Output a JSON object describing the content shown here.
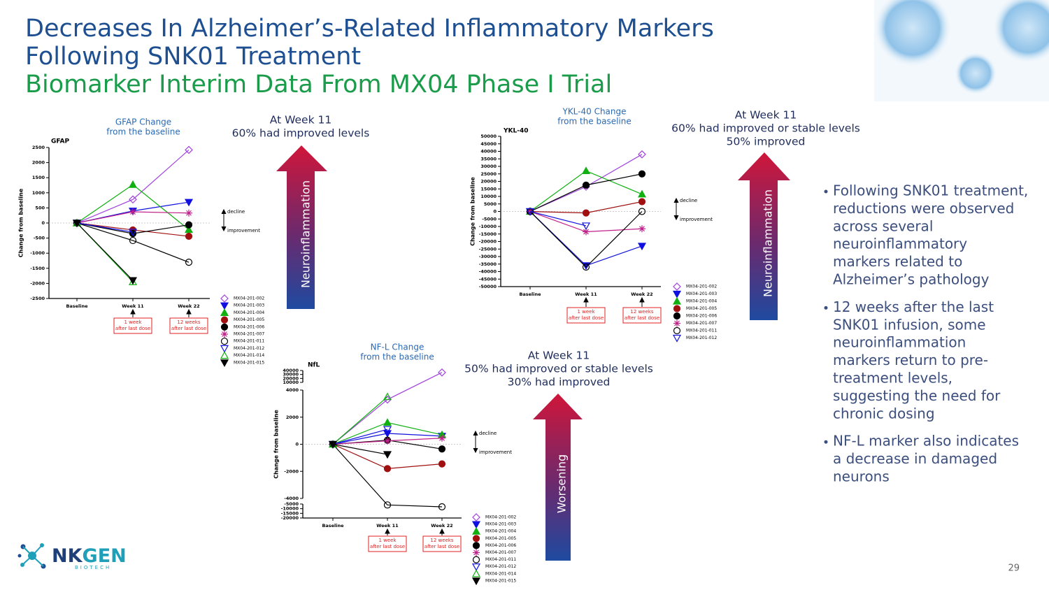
{
  "slide": {
    "title_lines": [
      "Decreases In Alzheimer’s-Related Inflammatory Markers",
      "Following SNK01 Treatment"
    ],
    "subtitle": "Biomarker Interim Data From MX04 Phase I Trial",
    "callouts": [
      [
        "At Week 11",
        "60% had improved levels"
      ],
      [
        "At Week 11",
        "60% had improved or stable levels",
        "50% improved"
      ],
      [
        "At Week 11",
        "50% had improved or stable levels",
        "30% had improved"
      ]
    ],
    "arrow_labels": [
      "Neuroinflammation",
      "Neuroinflammation",
      "Worsening"
    ],
    "bullets": [
      [
        "Following SNK01 treatment,",
        "reductions were observed",
        "across several",
        "neuroinflammatory",
        "markers related to",
        "Alzheimer’s pathology"
      ],
      [
        "12 weeks after the last",
        "SNK01 infusion, some",
        "neuroinflammation",
        "markers return to pre-",
        "treatment levels,",
        "suggesting the need for",
        "chronic dosing"
      ],
      [
        "NF-L marker also indicates",
        "a decrease in damaged",
        "neurons"
      ]
    ],
    "logo": {
      "name": [
        "NK",
        "GEN"
      ],
      "tagline": "BIOTECH"
    },
    "page_number": "29"
  },
  "chart_data": [
    {
      "type": "line",
      "caption": [
        "GFAP Change",
        "from the baseline"
      ],
      "title": "GFAP",
      "y_label": "Change from baseline",
      "categories": [
        "Baseline",
        "Week 11",
        "Week 22"
      ],
      "notes": [
        [
          "1 week",
          "after last dose"
        ],
        [
          "12 weeks",
          "after last dose"
        ]
      ],
      "decline_label": "decline",
      "improvement_label": "improvement",
      "ylim": [
        -2500,
        2500
      ],
      "yticks": [
        -2500,
        -2000,
        -1500,
        -1000,
        -500,
        0,
        500,
        1000,
        1500,
        2000,
        2500
      ],
      "series": [
        {
          "name": "MX04-201-002",
          "color": "#a040e0",
          "marker": "diamond-open",
          "values": [
            0,
            780,
            2420
          ]
        },
        {
          "name": "MX04-201-003",
          "color": "#1010e0",
          "marker": "tri-down",
          "values": [
            0,
            400,
            690
          ]
        },
        {
          "name": "MX04-201-004",
          "color": "#10b010",
          "marker": "tri",
          "values": [
            0,
            1270,
            -220
          ]
        },
        {
          "name": "MX04-201-005",
          "color": "#a01010",
          "marker": "circle",
          "values": [
            0,
            -230,
            -440
          ]
        },
        {
          "name": "MX04-201-006",
          "color": "#000000",
          "marker": "circle",
          "values": [
            0,
            -350,
            -60
          ]
        },
        {
          "name": "MX04-201-007",
          "color": "#c0208a",
          "marker": "asterisk",
          "values": [
            0,
            370,
            330
          ]
        },
        {
          "name": "MX04-201-011",
          "color": "#000000",
          "marker": "circle-open",
          "values": [
            0,
            -580,
            -1300
          ]
        },
        {
          "name": "MX04-201-012",
          "color": "#1010e0",
          "marker": "tri-down-open",
          "values": [
            0,
            -300,
            null
          ]
        },
        {
          "name": "MX04-201-014",
          "color": "#10b010",
          "marker": "tri-open",
          "values": [
            0,
            -1950,
            null
          ]
        },
        {
          "name": "MX04-201-015",
          "color": "#000000",
          "marker": "tri-down",
          "values": [
            0,
            -1900,
            null
          ]
        }
      ]
    },
    {
      "type": "line",
      "caption": [
        "YKL-40 Change",
        "from the baseline"
      ],
      "title": "YKL-40",
      "y_label": "Change from baseline",
      "categories": [
        "Baseline",
        "Week 11",
        "Week 22"
      ],
      "notes": [
        [
          "1 week",
          "after last dose"
        ],
        [
          "12 weeks",
          "after last dose"
        ]
      ],
      "decline_label": "decline",
      "improvement_label": "improvement",
      "ylim": [
        -50000,
        50000
      ],
      "yticks": [
        -50000,
        -45000,
        -40000,
        -35000,
        -30000,
        -25000,
        -20000,
        -15000,
        -10000,
        -5000,
        0,
        5000,
        10000,
        15000,
        20000,
        25000,
        30000,
        35000,
        40000,
        45000,
        50000
      ],
      "series": [
        {
          "name": "MX04-201-002",
          "color": "#a040e0",
          "marker": "diamond-open",
          "values": [
            0,
            16500,
            38000
          ]
        },
        {
          "name": "MX04-201-003",
          "color": "#1010e0",
          "marker": "tri-down",
          "values": [
            0,
            -36000,
            -23000
          ]
        },
        {
          "name": "MX04-201-004",
          "color": "#10b010",
          "marker": "tri",
          "values": [
            0,
            27000,
            11500
          ]
        },
        {
          "name": "MX04-201-005",
          "color": "#a01010",
          "marker": "circle",
          "values": [
            0,
            -1000,
            6500
          ]
        },
        {
          "name": "MX04-201-006",
          "color": "#000000",
          "marker": "circle",
          "values": [
            0,
            17500,
            25000
          ]
        },
        {
          "name": "MX04-201-007",
          "color": "#c0208a",
          "marker": "asterisk",
          "values": [
            0,
            -13500,
            -11500
          ]
        },
        {
          "name": "MX04-201-011",
          "color": "#000000",
          "marker": "circle-open",
          "values": [
            0,
            -37000,
            0
          ]
        },
        {
          "name": "MX04-201-012",
          "color": "#1010e0",
          "marker": "tri-down-open",
          "values": [
            0,
            -9500,
            null
          ]
        }
      ]
    },
    {
      "type": "line",
      "caption": [
        "NF-L Change",
        "from the baseline"
      ],
      "title": "NfL",
      "y_label": "Change from baseline",
      "categories": [
        "Baseline",
        "Week 11",
        "Week 22"
      ],
      "notes": [
        [
          "1 week",
          "after last dose"
        ],
        [
          "12 weeks",
          "after last dose"
        ]
      ],
      "decline_label": "decline",
      "improvement_label": "improvement",
      "ylim": [
        -20000,
        40000
      ],
      "ysegments": [
        [
          -20000,
          -5000
        ],
        [
          -4000,
          4000
        ],
        [
          10000,
          40000
        ]
      ],
      "yticks": [
        -20000,
        -15000,
        -10000,
        -5000,
        -4000,
        -2000,
        0,
        2000,
        4000,
        10000,
        20000,
        30000,
        40000
      ],
      "series": [
        {
          "name": "MX04-201-002",
          "color": "#a040e0",
          "marker": "diamond-open",
          "values": [
            0,
            3300,
            35000
          ]
        },
        {
          "name": "MX04-201-003",
          "color": "#1010e0",
          "marker": "tri-down",
          "values": [
            0,
            800,
            600
          ]
        },
        {
          "name": "MX04-201-004",
          "color": "#10b010",
          "marker": "tri",
          "values": [
            0,
            1600,
            700
          ]
        },
        {
          "name": "MX04-201-005",
          "color": "#a01010",
          "marker": "circle",
          "values": [
            0,
            -1800,
            -1450
          ]
        },
        {
          "name": "MX04-201-006",
          "color": "#000000",
          "marker": "circle",
          "values": [
            0,
            300,
            -350
          ]
        },
        {
          "name": "MX04-201-007",
          "color": "#c0208a",
          "marker": "asterisk",
          "values": [
            0,
            250,
            450
          ]
        },
        {
          "name": "MX04-201-011",
          "color": "#000000",
          "marker": "circle-open",
          "values": [
            0,
            -6000,
            -8000
          ]
        },
        {
          "name": "MX04-201-012",
          "color": "#1010e0",
          "marker": "tri-down-open",
          "values": [
            0,
            1100,
            null
          ]
        },
        {
          "name": "MX04-201-014",
          "color": "#10b010",
          "marker": "tri-open",
          "values": [
            0,
            3500,
            null
          ]
        },
        {
          "name": "MX04-201-015",
          "color": "#000000",
          "marker": "tri-down",
          "values": [
            0,
            -750,
            null
          ]
        }
      ]
    }
  ]
}
